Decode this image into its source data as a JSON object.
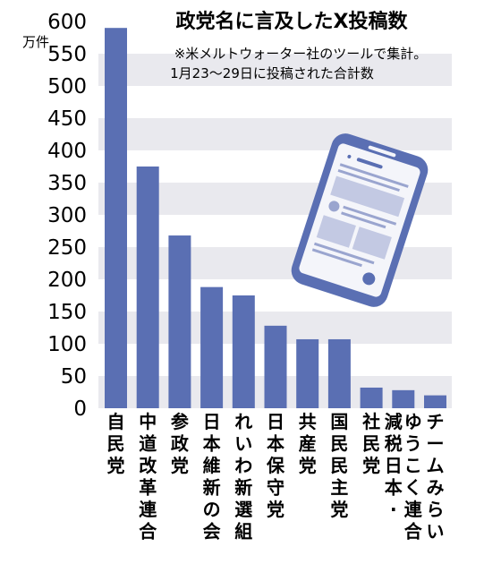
{
  "chart_data": {
    "type": "bar",
    "title": "政党名に言及したX投稿数",
    "notes": [
      "※米メルトウォーター社のツールで集計。",
      "1月23〜29日に投稿された合計数"
    ],
    "unit": "万件",
    "ylim": [
      0,
      600
    ],
    "yticks": [
      0,
      50,
      100,
      150,
      200,
      250,
      300,
      350,
      400,
      450,
      500,
      550,
      600
    ],
    "grid": "alternating horizontal bands",
    "categories": [
      "自民党",
      "中道改革連合",
      "参政党",
      "日本維新の会",
      "れいわ新選組",
      "日本保守党",
      "共産党",
      "国民民主党",
      "社民党",
      "減税日本・ゆうこく連合",
      "チームみらい"
    ],
    "category_lines": [
      [
        "自民党"
      ],
      [
        "中道改革連合"
      ],
      [
        "参政党"
      ],
      [
        "日本維新の会"
      ],
      [
        "れいわ新選組"
      ],
      [
        "日本保守党"
      ],
      [
        "共産党"
      ],
      [
        "国民民主党"
      ],
      [
        "社民党"
      ],
      [
        "ゆうこく連合",
        "減税日本・"
      ],
      [
        "チームみらい"
      ]
    ],
    "values": [
      590,
      375,
      268,
      188,
      175,
      128,
      107,
      107,
      32,
      28,
      20
    ]
  },
  "colors": {
    "bar": "#5a6fb3",
    "band": "#e9e9ee",
    "phone": "#5a6fb3",
    "screen": "#f4f5fa",
    "text": "#1a1a1a"
  },
  "decor": {
    "icon": "smartphone-icon"
  }
}
